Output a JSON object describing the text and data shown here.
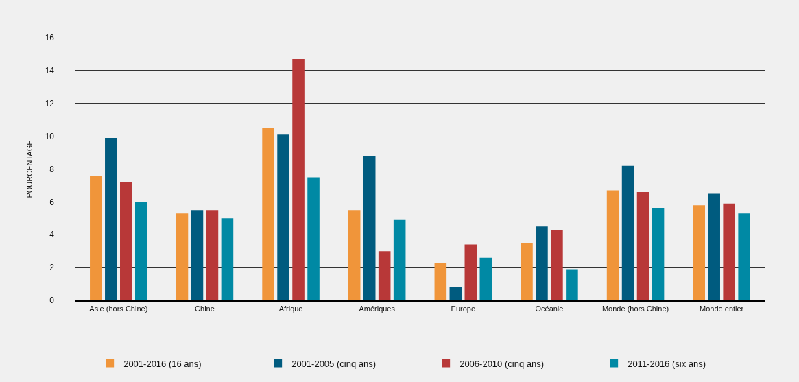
{
  "chart_data": {
    "type": "bar",
    "ylabel": "POURCENTAGE",
    "categories": [
      "Asie (hors Chine)",
      "Chine",
      "Afrique",
      "Amériques",
      "Europe",
      "Océanie",
      "Monde (hors Chine)",
      "Monde entier"
    ],
    "series": [
      {
        "name": "2001-2016 (16 ans)",
        "color": "#f0953a",
        "values": [
          7.6,
          5.3,
          10.5,
          5.5,
          2.3,
          3.5,
          6.7,
          5.8
        ]
      },
      {
        "name": "2001-2005 (cinq ans)",
        "color": "#005b7f",
        "values": [
          9.9,
          5.5,
          10.1,
          8.8,
          0.8,
          4.5,
          8.2,
          6.5
        ]
      },
      {
        "name": "2006-2010 (cinq ans)",
        "color": "#b83838",
        "values": [
          7.2,
          5.5,
          14.7,
          3.0,
          3.4,
          4.3,
          6.6,
          5.9
        ]
      },
      {
        "name": "2011-2016 (six ans)",
        "color": "#0089a4",
        "values": [
          6.0,
          5.0,
          7.5,
          4.9,
          2.6,
          1.9,
          5.6,
          5.3
        ]
      }
    ],
    "ylim": [
      0,
      16
    ],
    "yticks": [
      0,
      2,
      4,
      6,
      8,
      10,
      12,
      14,
      16
    ],
    "grid": "y",
    "legend": "bottom"
  }
}
